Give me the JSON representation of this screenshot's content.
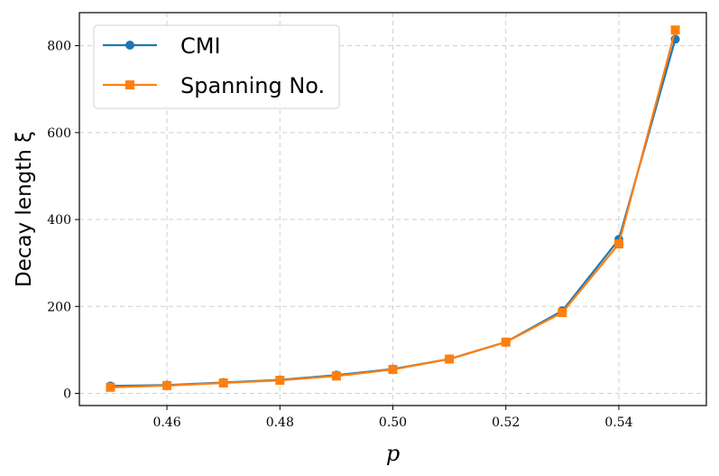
{
  "chart_data": {
    "type": "line",
    "xlabel": "p",
    "ylabel": "Decay length ξ",
    "x": [
      0.45,
      0.46,
      0.47,
      0.48,
      0.49,
      0.5,
      0.51,
      0.52,
      0.53,
      0.54,
      0.55
    ],
    "xlim": [
      0.4445,
      0.5555
    ],
    "ylim": [
      -28,
      876
    ],
    "xticks": [
      0.46,
      0.48,
      0.5,
      0.52,
      0.54
    ],
    "xtick_labels": [
      "0.46",
      "0.48",
      "0.50",
      "0.52",
      "0.54"
    ],
    "yticks": [
      0,
      200,
      400,
      600,
      800
    ],
    "ytick_labels": [
      "0",
      "200",
      "400",
      "600",
      "800"
    ],
    "grid": true,
    "legend_position": "top-left",
    "series": [
      {
        "name": "CMI",
        "color": "#1f77b4",
        "marker": "circle",
        "values": [
          17,
          19,
          25,
          31,
          42,
          56,
          79,
          118,
          190,
          354,
          815
        ]
      },
      {
        "name": "Spanning No.",
        "color": "#ff7f0e",
        "marker": "square",
        "values": [
          14,
          18,
          24,
          30,
          40,
          55,
          79,
          118,
          186,
          344,
          836
        ]
      }
    ]
  }
}
